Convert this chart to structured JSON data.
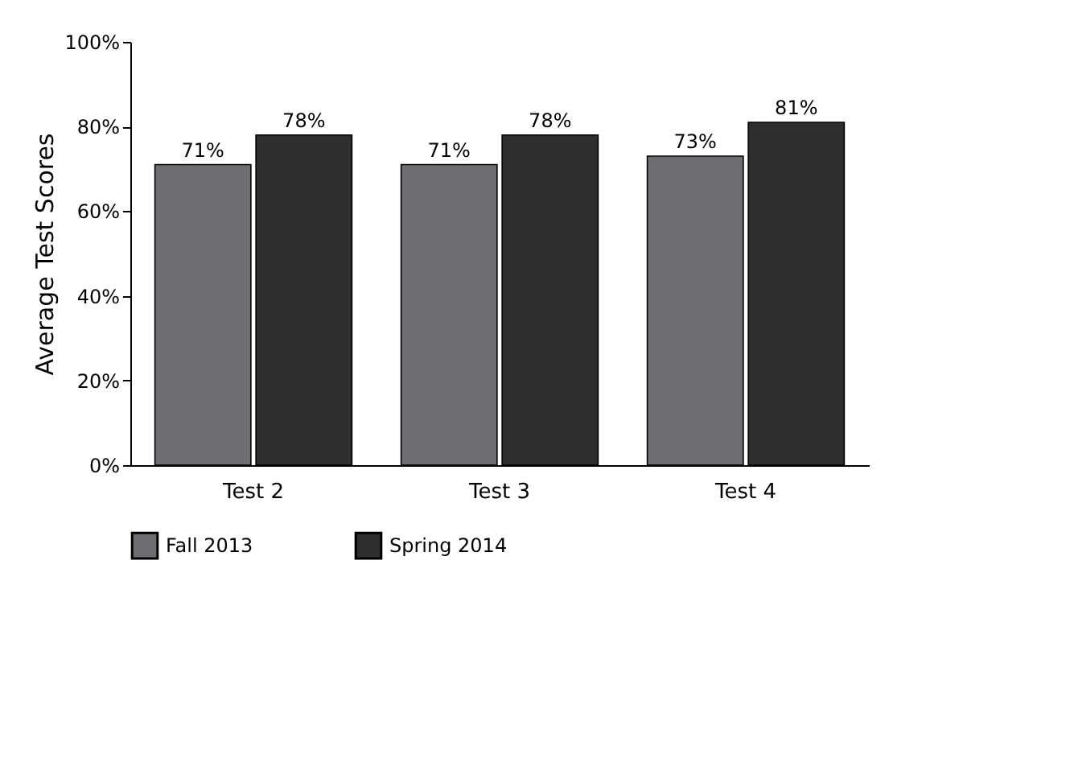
{
  "chart_data": {
    "type": "bar",
    "ylabel": "Average Test Scores",
    "categories": [
      "Test 2",
      "Test 3",
      "Test 4"
    ],
    "series": [
      {
        "name": "Fall 2013",
        "color": "#6d6e71",
        "values": [
          71,
          71,
          73
        ],
        "value_labels": [
          "71%",
          "71%",
          "73%"
        ]
      },
      {
        "name": "Spring 2014",
        "color": "#2e2e30",
        "values": [
          78,
          78,
          81
        ],
        "value_labels": [
          "78%",
          "78%",
          "81%"
        ]
      }
    ],
    "ylim": [
      0,
      100
    ],
    "yticks": [
      {
        "value": 0,
        "label": "0%"
      },
      {
        "value": 20,
        "label": "20%"
      },
      {
        "value": 40,
        "label": "40%"
      },
      {
        "value": 60,
        "label": "60%"
      },
      {
        "value": 80,
        "label": "80%"
      },
      {
        "value": 100,
        "label": "100%"
      }
    ],
    "grid": false,
    "legend": "bottom"
  }
}
